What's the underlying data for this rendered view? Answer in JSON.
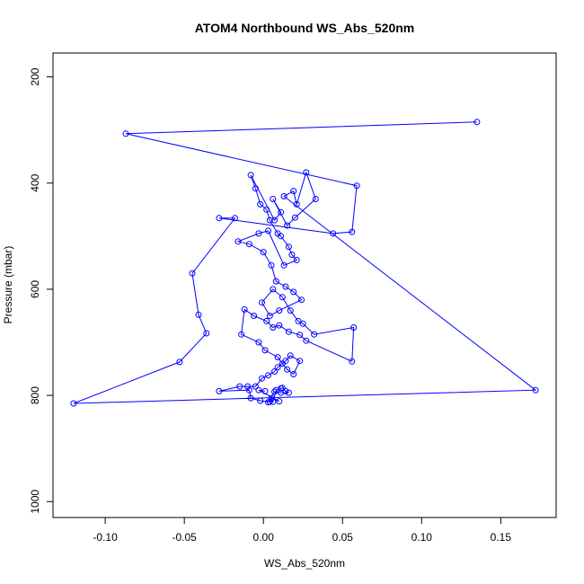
{
  "chart_data": {
    "type": "line",
    "title": "ATOM4 Northbound WS_Abs_520nm",
    "xlabel": "WS_Abs_520nm",
    "ylabel": "Pressure (mbar)",
    "xlim": [
      -0.133,
      0.185
    ],
    "ylim": [
      1030,
      155
    ],
    "y_reversed": true,
    "x_ticks": [
      -0.1,
      -0.05,
      0.0,
      0.05,
      0.1,
      0.15
    ],
    "x_tick_labels": [
      "-0.10",
      "-0.05",
      "0.00",
      "0.05",
      "0.10",
      "0.15"
    ],
    "y_ticks": [
      200,
      400,
      600,
      800,
      1000
    ],
    "y_tick_labels": [
      "200",
      "400",
      "600",
      "800",
      "1000"
    ],
    "grid": false,
    "series_color": "#0000ff",
    "series": [
      {
        "marker": "open-circle",
        "x": [
          0.135,
          -0.087,
          0.059,
          0.056,
          0.044,
          -0.028,
          -0.018,
          -0.045,
          -0.041,
          -0.036,
          -0.053,
          -0.12,
          0.172,
          0.013,
          0.019,
          0.021,
          0.027,
          0.033,
          0.02,
          0.015,
          0.006,
          0.011,
          0.007,
          -0.008,
          -0.005,
          -0.002,
          0.002,
          0.004,
          0.009,
          0.011,
          0.016,
          0.018,
          0.021,
          0.013,
          0.003,
          -0.003,
          -0.016,
          -0.009,
          0.0,
          0.005,
          0.008,
          0.014,
          0.019,
          0.024,
          0.01,
          0.004,
          -0.001,
          0.006,
          0.012,
          0.017,
          0.022,
          0.025,
          0.032,
          0.057,
          0.056,
          0.027,
          0.023,
          0.016,
          0.01,
          0.006,
          0.002,
          -0.006,
          -0.012,
          -0.014,
          -0.003,
          0.001,
          0.009,
          0.012,
          0.015,
          0.019,
          0.023,
          0.017,
          0.014,
          0.009,
          0.007,
          0.003,
          -0.001,
          -0.005,
          -0.01,
          -0.015,
          -0.028,
          -0.009,
          -0.008,
          -0.002,
          0.004,
          0.006,
          0.008,
          0.011,
          0.012,
          0.014,
          0.016,
          0.011,
          0.007,
          0.003,
          0.005,
          0.01,
          -0.003,
          0.001
        ],
        "y": [
          285,
          307,
          405,
          492,
          495,
          466,
          466,
          570,
          648,
          683,
          737,
          815,
          790,
          425,
          415,
          440,
          380,
          430,
          465,
          480,
          430,
          455,
          470,
          385,
          410,
          440,
          450,
          470,
          495,
          500,
          520,
          535,
          545,
          555,
          490,
          495,
          510,
          515,
          530,
          555,
          585,
          595,
          605,
          620,
          640,
          650,
          625,
          600,
          615,
          640,
          660,
          665,
          685,
          672,
          736,
          697,
          686,
          680,
          668,
          672,
          660,
          650,
          638,
          685,
          700,
          715,
          728,
          740,
          751,
          760,
          735,
          725,
          735,
          747,
          755,
          762,
          768,
          783,
          783,
          783,
          792,
          790,
          805,
          810,
          812,
          812,
          790,
          787,
          786,
          792,
          795,
          795,
          793,
          813,
          805,
          811,
          790,
          792
        ]
      }
    ]
  }
}
